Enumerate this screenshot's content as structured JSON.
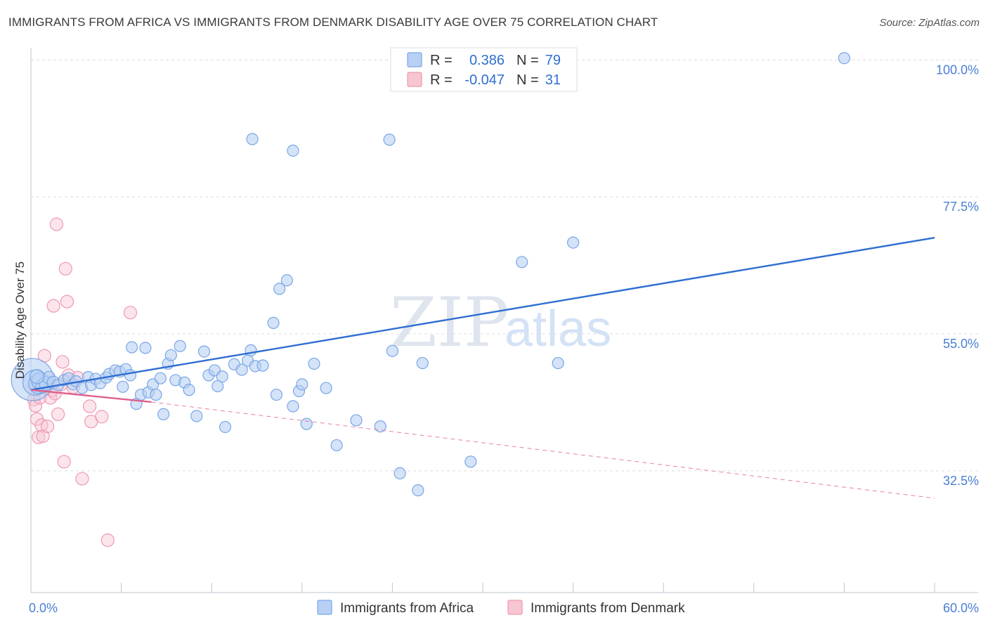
{
  "title": "IMMIGRANTS FROM AFRICA VS IMMIGRANTS FROM DENMARK DISABILITY AGE OVER 75 CORRELATION CHART",
  "source": "Source: ZipAtlas.com",
  "watermark": {
    "zip": "ZIP",
    "atlas": "atlas"
  },
  "colors": {
    "africa_fill": "#b8d0f3",
    "africa_stroke": "#7aa6e6",
    "africa_line": "#2f6fd1",
    "denmark_fill": "#f7c6d3",
    "denmark_stroke": "#ee99b3",
    "denmark_line": "#e0608c",
    "grid": "#d9dde3",
    "tick_label": "#4a7fd4"
  },
  "legend": {
    "rows": [
      {
        "series": "africa",
        "r_label": "R =",
        "r_value": "0.386",
        "n_label": "N =",
        "n_value": "79"
      },
      {
        "series": "denmark",
        "r_label": "R =",
        "r_value": "-0.047",
        "n_label": "N =",
        "n_value": "31"
      }
    ]
  },
  "bottom_legend": [
    "Immigrants from Africa",
    "Immigrants from Denmark"
  ],
  "chart_data": {
    "type": "scatter",
    "title": "IMMIGRANTS FROM AFRICA VS IMMIGRANTS FROM DENMARK DISABILITY AGE OVER 75 CORRELATION CHART",
    "xlabel": "",
    "ylabel": "Disability Age Over 75",
    "xlim": [
      0,
      60
    ],
    "ylim": [
      12.5,
      102
    ],
    "x_tick_labels": [
      {
        "value": 0,
        "label": "0.0%"
      },
      {
        "value": 60,
        "label": "60.0%"
      }
    ],
    "y_tick_labels": [
      {
        "value": 100,
        "label": "100.0%"
      },
      {
        "value": 77.5,
        "label": "77.5%"
      },
      {
        "value": 55,
        "label": "55.0%"
      },
      {
        "value": 32.5,
        "label": "32.5%"
      }
    ],
    "grid_y": [
      100,
      77.5,
      55,
      32.5
    ],
    "series": [
      {
        "name": "Immigrants from Africa",
        "key": "africa",
        "R": 0.386,
        "N": 79,
        "trend": {
          "x": [
            0,
            60
          ],
          "y": [
            45.8,
            70.8
          ],
          "dashed": false
        },
        "points": [
          [
            0.1,
            47.5,
            30
          ],
          [
            0.3,
            47.0,
            18
          ],
          [
            0.5,
            46.8,
            14
          ],
          [
            0.6,
            47.3,
            12
          ],
          [
            0.8,
            46.5,
            10
          ],
          [
            1.0,
            46.9,
            10
          ],
          [
            1.2,
            47.8,
            9
          ],
          [
            1.5,
            47.0,
            9
          ],
          [
            1.8,
            46.6,
            8
          ],
          [
            2.2,
            47.4,
            8
          ],
          [
            2.5,
            47.7,
            8
          ],
          [
            2.8,
            46.7,
            8
          ],
          [
            3.0,
            47.2,
            8
          ],
          [
            3.4,
            46.1,
            8
          ],
          [
            3.8,
            47.9,
            8
          ],
          [
            4.0,
            46.6,
            8
          ],
          [
            4.3,
            47.6,
            8
          ],
          [
            4.6,
            46.9,
            8
          ],
          [
            5.0,
            47.8,
            8
          ],
          [
            5.2,
            48.4,
            8
          ],
          [
            5.6,
            49.0,
            8
          ],
          [
            5.9,
            48.8,
            8
          ],
          [
            6.1,
            46.3,
            8
          ],
          [
            6.3,
            49.2,
            8
          ],
          [
            6.6,
            48.2,
            8
          ],
          [
            6.7,
            52.8,
            8
          ],
          [
            7.0,
            43.5,
            8
          ],
          [
            7.3,
            45.0,
            8
          ],
          [
            7.6,
            52.7,
            8
          ],
          [
            7.8,
            45.4,
            8
          ],
          [
            8.1,
            46.7,
            8
          ],
          [
            8.3,
            45.0,
            8
          ],
          [
            8.6,
            47.7,
            8
          ],
          [
            8.8,
            41.8,
            8
          ],
          [
            9.1,
            50.1,
            8
          ],
          [
            9.3,
            51.5,
            8
          ],
          [
            9.6,
            47.4,
            8
          ],
          [
            9.9,
            53.0,
            8
          ],
          [
            10.2,
            47.0,
            8
          ],
          [
            10.5,
            45.8,
            8
          ],
          [
            11.0,
            41.5,
            8
          ],
          [
            11.5,
            52.1,
            8
          ],
          [
            11.8,
            48.2,
            8
          ],
          [
            12.2,
            49.0,
            8
          ],
          [
            12.4,
            46.4,
            8
          ],
          [
            12.7,
            48.0,
            8
          ],
          [
            12.9,
            39.7,
            8
          ],
          [
            13.5,
            50.0,
            8
          ],
          [
            14.0,
            49.1,
            8
          ],
          [
            14.4,
            50.6,
            8
          ],
          [
            14.6,
            52.3,
            8
          ],
          [
            14.9,
            49.7,
            8
          ],
          [
            15.4,
            49.8,
            8
          ],
          [
            16.1,
            56.8,
            8
          ],
          [
            16.3,
            45.0,
            8
          ],
          [
            16.5,
            62.4,
            8
          ],
          [
            17.0,
            63.8,
            8
          ],
          [
            17.4,
            43.1,
            8
          ],
          [
            17.8,
            45.6,
            8
          ],
          [
            18.0,
            46.7,
            8
          ],
          [
            18.3,
            40.2,
            8
          ],
          [
            18.8,
            50.1,
            8
          ],
          [
            19.6,
            46.1,
            8
          ],
          [
            20.3,
            36.7,
            8
          ],
          [
            21.6,
            40.8,
            8
          ],
          [
            23.2,
            39.8,
            8
          ],
          [
            24.0,
            52.2,
            8
          ],
          [
            24.5,
            32.1,
            8
          ],
          [
            25.7,
            29.3,
            8
          ],
          [
            26.0,
            50.2,
            8
          ],
          [
            29.2,
            34.0,
            8
          ],
          [
            32.6,
            66.8,
            8
          ],
          [
            35.0,
            50.2,
            8
          ],
          [
            36.0,
            70.0,
            8
          ],
          [
            14.7,
            87.0,
            8
          ],
          [
            17.4,
            85.1,
            8
          ],
          [
            23.8,
            86.9,
            8
          ],
          [
            54.0,
            100.3,
            8
          ],
          [
            0.4,
            48.0,
            10
          ]
        ]
      },
      {
        "name": "Immigrants from Denmark",
        "key": "denmark",
        "R": -0.047,
        "N": 31,
        "trend": {
          "x": [
            0,
            8
          ],
          "y": [
            45.8,
            43.8
          ],
          "dashed": false
        },
        "trend_extension": {
          "x": [
            8,
            60
          ],
          "y": [
            43.8,
            28.0
          ],
          "dashed": true
        },
        "points": [
          [
            0.2,
            44.2,
            9
          ],
          [
            0.3,
            43.2,
            9
          ],
          [
            0.4,
            41.0,
            9
          ],
          [
            0.5,
            38.0,
            9
          ],
          [
            0.6,
            44.5,
            9
          ],
          [
            0.7,
            40.0,
            9
          ],
          [
            0.8,
            38.2,
            9
          ],
          [
            0.9,
            51.4,
            9
          ],
          [
            1.0,
            46.1,
            9
          ],
          [
            1.1,
            39.8,
            9
          ],
          [
            1.2,
            46.9,
            9
          ],
          [
            1.3,
            44.5,
            9
          ],
          [
            1.4,
            45.7,
            9
          ],
          [
            1.5,
            59.6,
            9
          ],
          [
            1.6,
            45.2,
            9
          ],
          [
            1.7,
            73.0,
            9
          ],
          [
            1.8,
            41.8,
            9
          ],
          [
            2.0,
            46.7,
            9
          ],
          [
            2.1,
            50.4,
            9
          ],
          [
            2.2,
            34.0,
            9
          ],
          [
            2.3,
            65.7,
            9
          ],
          [
            2.4,
            60.3,
            9
          ],
          [
            2.5,
            48.2,
            9
          ],
          [
            2.8,
            46.2,
            9
          ],
          [
            3.1,
            47.8,
            9
          ],
          [
            3.4,
            31.2,
            9
          ],
          [
            3.9,
            43.1,
            9
          ],
          [
            4.0,
            40.6,
            9
          ],
          [
            4.7,
            41.4,
            9
          ],
          [
            5.1,
            21.1,
            9
          ],
          [
            6.6,
            58.5,
            9
          ]
        ]
      }
    ]
  }
}
